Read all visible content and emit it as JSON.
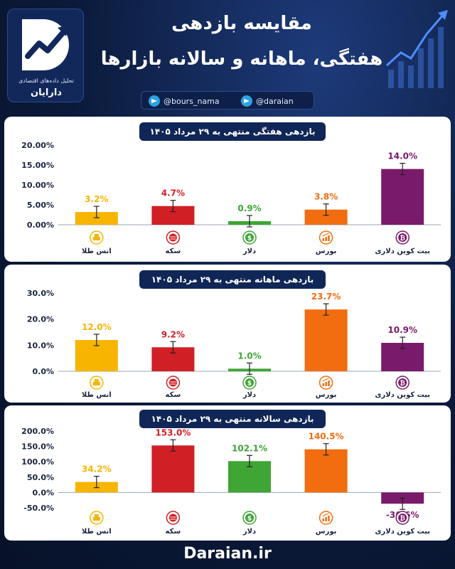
{
  "header": {
    "title_line1": "مقایسه بازدهی",
    "title_line2": "هفتگی، ماهانه و سالانه بازارها",
    "logo_tagline": "تحلیل داده‌های اقتصادی",
    "logo_name": "دارایان",
    "social": [
      {
        "icon": "telegram-icon",
        "handle": "@bours_nama"
      },
      {
        "icon": "telegram-icon",
        "handle": "@daraian"
      }
    ]
  },
  "footer": {
    "site": "Daraian.ir"
  },
  "colors": {
    "gold": "#f7b500",
    "coin": "#d11f26",
    "dollar": "#3fa535",
    "bourse": "#f26d0f",
    "bitcoin": "#7a1a6b"
  },
  "chart_data": [
    {
      "type": "bar",
      "title": "بازدهی هفتگی منتهی به ۲۹ مرداد ۱۴۰۵",
      "categories": [
        "انس طلا",
        "سکه",
        "دلار",
        "بورس",
        "بیت کوین دلاری"
      ],
      "category_icons": [
        "gold-bar-icon",
        "coin-stack-icon",
        "dollar-icon",
        "chart-icon",
        "bitcoin-icon"
      ],
      "values": [
        3.2,
        4.7,
        0.9,
        3.8,
        14.0
      ],
      "value_labels": [
        "3.2%",
        "4.7%",
        "0.9%",
        "3.8%",
        "14.0%"
      ],
      "yticks": [
        "20.00%",
        "15.00%",
        "10.00%",
        "5.00%",
        "0.00%"
      ],
      "ytick_values": [
        20,
        15,
        10,
        5,
        0
      ],
      "ylim": [
        0,
        20
      ],
      "error_bars": true
    },
    {
      "type": "bar",
      "title": "بازدهی ماهانه منتهی به ۲۹ مرداد ۱۴۰۵",
      "categories": [
        "انس طلا",
        "سکه",
        "دلار",
        "بورس",
        "بیت کوین دلاری"
      ],
      "category_icons": [
        "gold-bar-icon",
        "coin-stack-icon",
        "dollar-icon",
        "chart-icon",
        "bitcoin-icon"
      ],
      "values": [
        12.0,
        9.2,
        1.0,
        23.7,
        10.9
      ],
      "value_labels": [
        "12.0%",
        "9.2%",
        "1.0%",
        "23.7%",
        "10.9%"
      ],
      "yticks": [
        "30.0%",
        "20.0%",
        "10.0%",
        "0.0%"
      ],
      "ytick_values": [
        30,
        20,
        10,
        0
      ],
      "ylim": [
        0,
        30
      ],
      "error_bars": true
    },
    {
      "type": "bar",
      "title": "بازدهی سالانه منتهی به ۲۹ مرداد ۱۴۰۵",
      "categories": [
        "انس طلا",
        "سکه",
        "دلار",
        "بورس",
        "بیت کوین دلاری"
      ],
      "category_icons": [
        "gold-bar-icon",
        "coin-stack-icon",
        "dollar-icon",
        "chart-icon",
        "bitcoin-icon"
      ],
      "values": [
        34.2,
        153.0,
        102.1,
        140.5,
        -36.6
      ],
      "value_labels": [
        "34.2%",
        "153.0%",
        "102.1%",
        "140.5%",
        "-36.6%"
      ],
      "yticks": [
        "200.0%",
        "150.0%",
        "100.0%",
        "50.0%",
        "0.0%",
        "-50.0%"
      ],
      "ytick_values": [
        200,
        150,
        100,
        50,
        0,
        -50
      ],
      "ylim": [
        -50,
        200
      ],
      "error_bars": true
    }
  ]
}
